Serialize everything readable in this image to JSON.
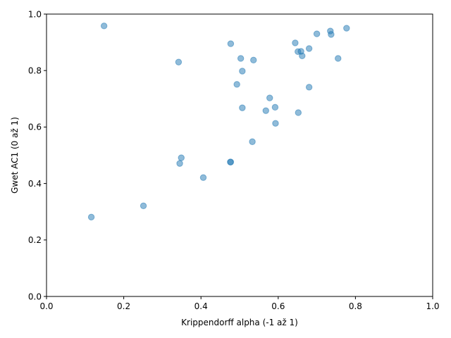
{
  "chart_data": {
    "type": "scatter",
    "title": "",
    "xlabel": "Krippendorff alpha (-1 až 1)",
    "ylabel": "Gwet AC1 (0 až 1)",
    "xlim": [
      0,
      1
    ],
    "ylim": [
      0,
      1
    ],
    "xticks": [
      0.0,
      0.2,
      0.4,
      0.6,
      0.8,
      1.0
    ],
    "yticks": [
      0.0,
      0.2,
      0.4,
      0.6,
      0.8,
      1.0
    ],
    "xtick_labels": [
      "0.0",
      "0.2",
      "0.4",
      "0.6",
      "0.8",
      "1.0"
    ],
    "ytick_labels": [
      "0.0",
      "0.2",
      "0.4",
      "0.6",
      "0.8",
      "1.0"
    ],
    "grid": false,
    "color": "#1f77b4",
    "points": [
      {
        "x": 0.149,
        "y": 0.958
      },
      {
        "x": 0.342,
        "y": 0.83
      },
      {
        "x": 0.477,
        "y": 0.895
      },
      {
        "x": 0.503,
        "y": 0.843
      },
      {
        "x": 0.536,
        "y": 0.837
      },
      {
        "x": 0.507,
        "y": 0.798
      },
      {
        "x": 0.493,
        "y": 0.751
      },
      {
        "x": 0.578,
        "y": 0.703
      },
      {
        "x": 0.507,
        "y": 0.668
      },
      {
        "x": 0.568,
        "y": 0.658
      },
      {
        "x": 0.592,
        "y": 0.67
      },
      {
        "x": 0.593,
        "y": 0.613
      },
      {
        "x": 0.533,
        "y": 0.548
      },
      {
        "x": 0.349,
        "y": 0.491
      },
      {
        "x": 0.345,
        "y": 0.471
      },
      {
        "x": 0.477,
        "y": 0.476
      },
      {
        "x": 0.476,
        "y": 0.476
      },
      {
        "x": 0.406,
        "y": 0.421
      },
      {
        "x": 0.251,
        "y": 0.321
      },
      {
        "x": 0.116,
        "y": 0.281
      },
      {
        "x": 0.644,
        "y": 0.898
      },
      {
        "x": 0.651,
        "y": 0.867
      },
      {
        "x": 0.659,
        "y": 0.868
      },
      {
        "x": 0.662,
        "y": 0.852
      },
      {
        "x": 0.68,
        "y": 0.878
      },
      {
        "x": 0.652,
        "y": 0.651
      },
      {
        "x": 0.68,
        "y": 0.741
      },
      {
        "x": 0.7,
        "y": 0.93
      },
      {
        "x": 0.735,
        "y": 0.94
      },
      {
        "x": 0.737,
        "y": 0.928
      },
      {
        "x": 0.755,
        "y": 0.843
      },
      {
        "x": 0.777,
        "y": 0.95
      }
    ]
  }
}
